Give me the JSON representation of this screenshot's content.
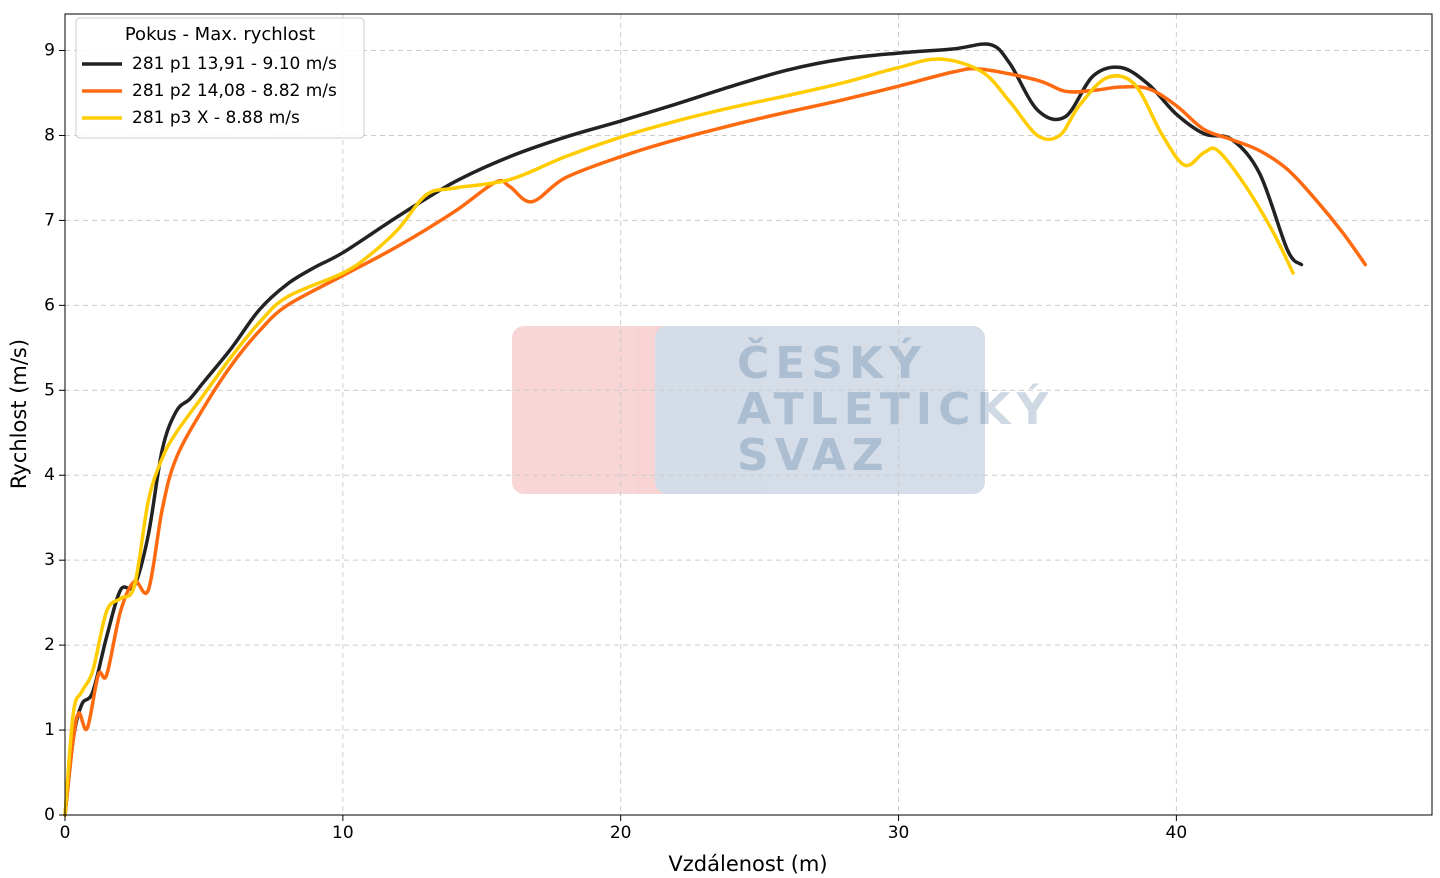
{
  "chart_data": {
    "type": "line",
    "xlabel": "Vzdálenost (m)",
    "ylabel": "Rychlost (m/s)",
    "legend_title": "Pokus - Max. rychlost",
    "legend": "upper left",
    "grid": true,
    "watermark": [
      "ČESKÝ",
      "ATLETICKÝ",
      "SVAZ"
    ],
    "xlim": [
      0,
      49.2
    ],
    "ylim": [
      0,
      9.43
    ],
    "xticks": [
      0,
      10,
      20,
      30,
      40
    ],
    "yticks": [
      0,
      1,
      2,
      3,
      4,
      5,
      6,
      7,
      8,
      9
    ],
    "series": [
      {
        "name": "281 p1 13,91 - 9.10 m/s",
        "color": "#222222",
        "x": [
          0,
          0.3,
          0.6,
          1,
          1.5,
          2,
          2.5,
          3,
          3.5,
          4,
          4.5,
          5,
          6,
          7,
          8,
          9,
          10,
          12,
          14,
          16,
          18,
          20,
          22,
          24,
          26,
          28,
          30,
          32,
          33.3,
          34,
          35,
          36,
          37,
          38,
          39,
          40,
          41,
          42,
          43,
          44,
          44.5
        ],
        "values": [
          0,
          0.9,
          1.3,
          1.45,
          2.1,
          2.65,
          2.7,
          3.3,
          4.3,
          4.75,
          4.9,
          5.1,
          5.5,
          5.95,
          6.25,
          6.45,
          6.62,
          7.05,
          7.45,
          7.75,
          7.98,
          8.17,
          8.37,
          8.58,
          8.77,
          8.9,
          8.97,
          9.02,
          9.07,
          8.85,
          8.3,
          8.22,
          8.7,
          8.8,
          8.6,
          8.25,
          8.02,
          7.95,
          7.55,
          6.65,
          6.48
        ]
      },
      {
        "name": "281 p2 14,08 - 8.82 m/s",
        "color": "#ff6a10",
        "x": [
          0,
          0.3,
          0.5,
          0.8,
          1.2,
          1.5,
          2,
          2.5,
          3,
          3.5,
          4,
          5,
          6,
          7,
          8,
          10,
          12,
          14,
          15.5,
          16,
          16.8,
          18,
          20,
          22,
          25,
          28,
          30,
          32,
          33,
          35,
          36,
          37,
          38,
          39,
          40,
          41,
          42,
          43,
          44,
          45,
          46,
          46.8
        ],
        "values": [
          0,
          0.9,
          1.2,
          1.02,
          1.65,
          1.65,
          2.4,
          2.75,
          2.65,
          3.6,
          4.2,
          4.8,
          5.3,
          5.7,
          6.0,
          6.35,
          6.7,
          7.1,
          7.45,
          7.4,
          7.22,
          7.5,
          7.75,
          7.95,
          8.2,
          8.42,
          8.58,
          8.75,
          8.78,
          8.65,
          8.52,
          8.53,
          8.57,
          8.55,
          8.35,
          8.07,
          7.95,
          7.82,
          7.6,
          7.25,
          6.85,
          6.48
        ]
      },
      {
        "name": "281 p3 X - 8.88 m/s",
        "color": "#ffcc00",
        "x": [
          0,
          0.3,
          0.6,
          1,
          1.5,
          2,
          2.5,
          3,
          3.5,
          4,
          5,
          6,
          7,
          8,
          10,
          11,
          12,
          13,
          14,
          16,
          18,
          20,
          22,
          24,
          26,
          28,
          30,
          31.5,
          33,
          34,
          35,
          35.8,
          36.5,
          37.5,
          38.5,
          39.5,
          40.3,
          41,
          41.5,
          42.5,
          43.5,
          44.2
        ],
        "values": [
          0,
          1.2,
          1.45,
          1.7,
          2.4,
          2.55,
          2.7,
          3.7,
          4.2,
          4.5,
          4.95,
          5.4,
          5.8,
          6.1,
          6.38,
          6.6,
          6.9,
          7.3,
          7.38,
          7.48,
          7.75,
          7.98,
          8.17,
          8.33,
          8.47,
          8.62,
          8.8,
          8.9,
          8.75,
          8.4,
          8.0,
          8.0,
          8.35,
          8.68,
          8.6,
          8.0,
          7.65,
          7.8,
          7.82,
          7.4,
          6.85,
          6.38
        ]
      }
    ]
  }
}
